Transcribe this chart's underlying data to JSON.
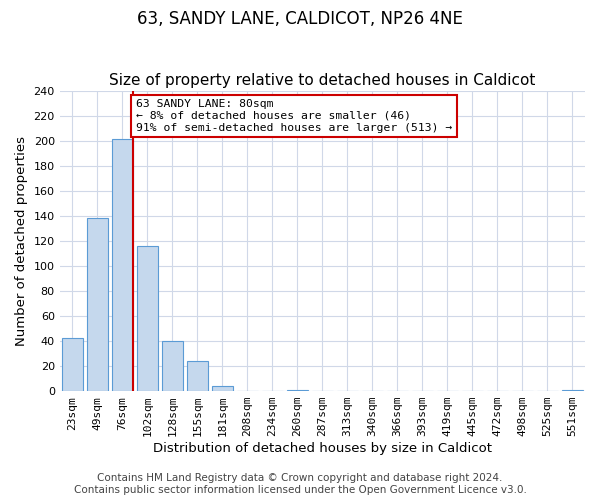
{
  "title": "63, SANDY LANE, CALDICOT, NP26 4NE",
  "subtitle": "Size of property relative to detached houses in Caldicot",
  "xlabel": "Distribution of detached houses by size in Caldicot",
  "ylabel": "Number of detached properties",
  "bar_labels": [
    "23sqm",
    "49sqm",
    "76sqm",
    "102sqm",
    "128sqm",
    "155sqm",
    "181sqm",
    "208sqm",
    "234sqm",
    "260sqm",
    "287sqm",
    "313sqm",
    "340sqm",
    "366sqm",
    "393sqm",
    "419sqm",
    "445sqm",
    "472sqm",
    "498sqm",
    "525sqm",
    "551sqm"
  ],
  "bar_values": [
    42,
    138,
    201,
    116,
    40,
    24,
    4,
    0,
    0,
    1,
    0,
    0,
    0,
    0,
    0,
    0,
    0,
    0,
    0,
    0,
    1
  ],
  "bar_color": "#c5d8ed",
  "bar_edge_color": "#5b9bd5",
  "ylim": [
    0,
    240
  ],
  "yticks": [
    0,
    20,
    40,
    60,
    80,
    100,
    120,
    140,
    160,
    180,
    200,
    220,
    240
  ],
  "vline_x": 2.425,
  "vline_color": "#cc0000",
  "annotation_title": "63 SANDY LANE: 80sqm",
  "annotation_line1": "← 8% of detached houses are smaller (46)",
  "annotation_line2": "91% of semi-detached houses are larger (513) →",
  "annotation_box_color": "#cc0000",
  "footer_line1": "Contains HM Land Registry data © Crown copyright and database right 2024.",
  "footer_line2": "Contains public sector information licensed under the Open Government Licence v3.0.",
  "bg_color": "#ffffff",
  "grid_color": "#d0d8e8",
  "title_fontsize": 12,
  "subtitle_fontsize": 11,
  "axis_label_fontsize": 9.5,
  "tick_fontsize": 8,
  "footer_fontsize": 7.5
}
